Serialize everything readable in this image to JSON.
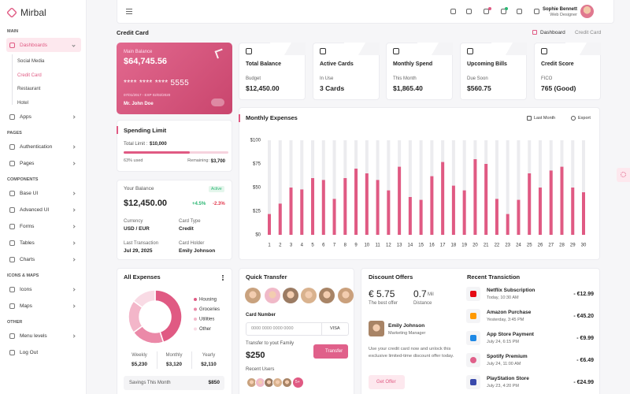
{
  "sidebar": {
    "brand": "Mirbal",
    "sections": [
      {
        "title": "MAIN",
        "items": [
          {
            "label": "Dashboards",
            "children": [
              "Social Media",
              "Credit Card",
              "Restaurant",
              "Hotel"
            ]
          },
          {
            "label": "Apps"
          }
        ]
      },
      {
        "title": "PAGES",
        "items": [
          {
            "label": "Authentication"
          },
          {
            "label": "Pages"
          }
        ]
      },
      {
        "title": "COMPONENTS",
        "items": [
          {
            "label": "Base UI"
          },
          {
            "label": "Advanced UI"
          },
          {
            "label": "Forms"
          },
          {
            "label": "Tables"
          },
          {
            "label": "Charts"
          }
        ]
      },
      {
        "title": "ICONS & MAPS",
        "items": [
          {
            "label": "Icons"
          },
          {
            "label": "Maps"
          }
        ]
      },
      {
        "title": "OTHER",
        "items": [
          {
            "label": "Menu levels"
          },
          {
            "label": "Log Out"
          }
        ]
      }
    ]
  },
  "header": {
    "user_name": "Sophie Bennett",
    "user_role": "Web Designer"
  },
  "page": {
    "title": "Credit Card",
    "breadcrumb": [
      "Dashboard",
      "Credit Card"
    ]
  },
  "card": {
    "label": "Main Balance",
    "balance": "$64,745.56",
    "number": "**** **** **** 5555",
    "dates": "07/01/2017 - EXP 02/02/2020",
    "holder": "Mr. John Doe"
  },
  "stats": [
    {
      "title": "Total Balance",
      "label": "Budget",
      "value": "$12,450.00"
    },
    {
      "title": "Active Cards",
      "label": "In Use",
      "value": "3 Cards"
    },
    {
      "title": "Monthly Spend",
      "label": "This Month",
      "value": "$1,865.40"
    },
    {
      "title": "Upcoming Bills",
      "label": "Due Soon",
      "value": "$560.75"
    },
    {
      "title": "Credit Score",
      "label": "FICO",
      "value": "765 (Good)"
    }
  ],
  "spending_limit": {
    "title": "Spending Limit",
    "total_label": "Total Limit :",
    "total": "$10,000",
    "used": {
      "value": 63,
      "label": "63% used"
    },
    "remaining_label": "Remaining:",
    "remaining": "$3,700"
  },
  "balance": {
    "title": "Your Balance",
    "status": "Active",
    "amount": "$12,450.00",
    "up": "+4.5%",
    "down": "-2.3%",
    "fields": [
      {
        "label": "Currency",
        "value": "USD / EUR"
      },
      {
        "label": "Card Type",
        "value": "Credit"
      },
      {
        "label": "Last Transaction",
        "value": "Jul 29, 2025"
      },
      {
        "label": "Card Holder",
        "value": "Emily Johnson"
      }
    ]
  },
  "chart_data": {
    "type": "bar",
    "title": "Monthly Expenses",
    "filter": "Last Month",
    "export": "Export",
    "categories": [
      "1",
      "2",
      "3",
      "4",
      "5",
      "6",
      "7",
      "8",
      "9",
      "10",
      "11",
      "12",
      "13",
      "14",
      "15",
      "16",
      "17",
      "18",
      "19",
      "20",
      "21",
      "22",
      "23",
      "24",
      "25",
      "26",
      "27",
      "28",
      "29",
      "30"
    ],
    "values": [
      22,
      33,
      50,
      48,
      60,
      58,
      38,
      60,
      70,
      65,
      58,
      47,
      72,
      40,
      37,
      62,
      77,
      52,
      47,
      80,
      75,
      38,
      22,
      37,
      65,
      50,
      68,
      72,
      50,
      45
    ],
    "color": "#e05a83",
    "ylim": [
      0,
      100
    ],
    "yticks": [
      {
        "value": 0,
        "label": "$0"
      },
      {
        "value": 25,
        "label": "$25"
      },
      {
        "value": 50,
        "label": "$50"
      },
      {
        "value": 75,
        "label": "$75"
      },
      {
        "value": 100,
        "label": "$100"
      }
    ]
  },
  "expenses": {
    "title": "All Expenses",
    "segments": [
      {
        "name": "Housing",
        "value": 45,
        "color": "#e05a83"
      },
      {
        "name": "Groceries",
        "value": 20,
        "color": "#eb89a8"
      },
      {
        "name": "Utilities",
        "value": 20,
        "color": "#f3b6c9"
      },
      {
        "name": "Other",
        "value": 15,
        "color": "#f9dbe5"
      }
    ],
    "periods": [
      {
        "label": "Weekly",
        "value": "$5,230"
      },
      {
        "label": "Monthly",
        "value": "$3,120"
      },
      {
        "label": "Yearly",
        "value": "$2,110"
      }
    ],
    "savings_label": "Savings This Month",
    "savings": "$850"
  },
  "transfer": {
    "title": "Quick Transfer",
    "card_label": "Card Number",
    "card_placeholder": "0000 0000 0000 0000",
    "card_brand": "VISA",
    "family_label": "Transfer to yout Family",
    "amount": "$250",
    "button": "Transfer",
    "recent_label": "Recent Users",
    "more": "5+"
  },
  "discount": {
    "title": "Discount Offers",
    "offer": "€ 5.75",
    "offer_label": "The best offer",
    "distance": "0.7",
    "distance_unit": "Mil",
    "distance_label": "Distance",
    "person": "Emily Johnson",
    "role": "Marketing Manager",
    "text": "Use your credit card now and unlock this exclusive limited-time discount offer today.",
    "button": "Get Offer"
  },
  "transactions": {
    "title": "Recent Transiction",
    "rows": [
      {
        "name": "Netflix Subscription",
        "time": "Today, 10:30 AM",
        "amount": "- €12.99"
      },
      {
        "name": "Amazon Purchase",
        "time": "Yesterday, 3:45 PM",
        "amount": "- €45.20"
      },
      {
        "name": "App Store Payment",
        "time": "July 24, 6:15 PM",
        "amount": "- €9.99"
      },
      {
        "name": "Spotify Premium",
        "time": "July 24, 11:00 AM",
        "amount": "- €6.49"
      },
      {
        "name": "PlayStation Store",
        "time": "July 23, 4:20 PM",
        "amount": "- €24.99"
      }
    ]
  }
}
